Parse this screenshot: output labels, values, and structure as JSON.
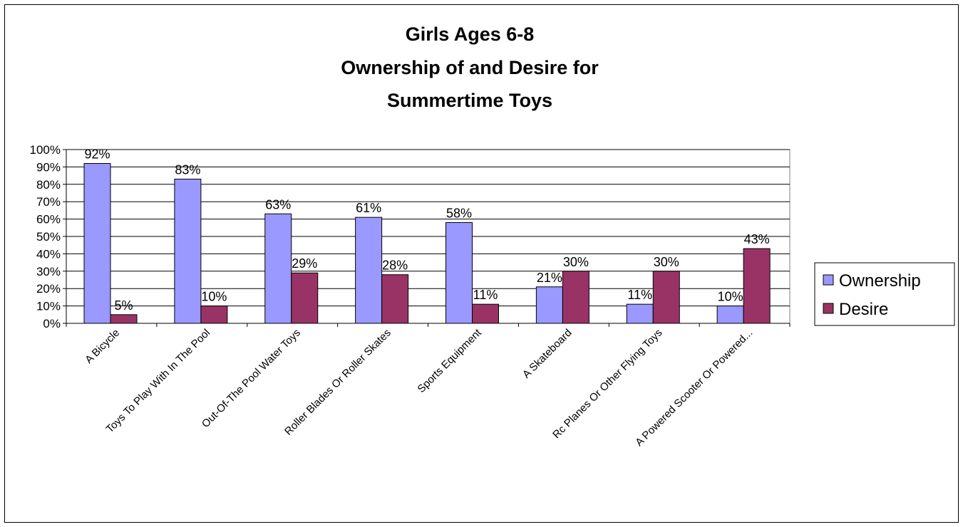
{
  "chart_data": {
    "type": "bar",
    "title_lines": [
      "Girls Ages 6-8",
      "Ownership of and Desire for",
      "Summertime Toys"
    ],
    "categories": [
      "A Bicycle",
      "Toys To Play With In The Pool",
      "Out-Of-The Pool Water Toys",
      "Roller Blades Or Roller Skates",
      "Sports Equipment",
      "A Skateboard",
      "Rc Planes Or Other Flying Toys",
      "A Powered Scooter Or Powered..."
    ],
    "series": [
      {
        "name": "Ownership",
        "color": "#9999ff",
        "values": [
          92,
          83,
          63,
          61,
          58,
          21,
          11,
          10
        ]
      },
      {
        "name": "Desire",
        "color": "#993366",
        "values": [
          5,
          10,
          29,
          28,
          11,
          30,
          30,
          43
        ]
      }
    ],
    "y_ticks": [
      "0%",
      "10%",
      "20%",
      "30%",
      "40%",
      "50%",
      "60%",
      "70%",
      "80%",
      "90%",
      "100%"
    ],
    "ylim": [
      0,
      100
    ],
    "value_suffix": "%",
    "grid": true,
    "legend_position": "right"
  }
}
